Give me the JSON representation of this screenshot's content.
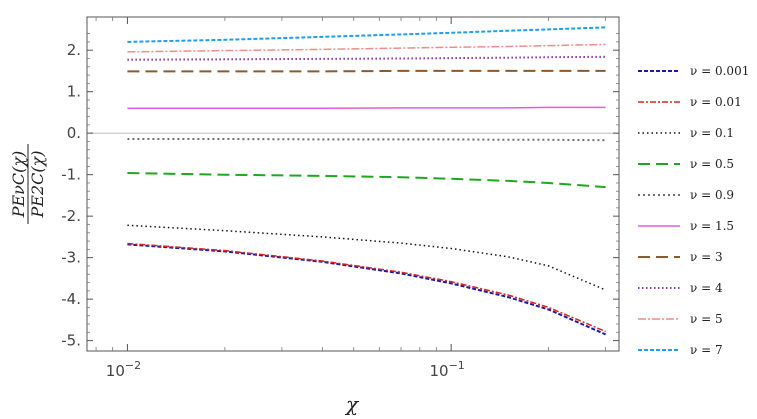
{
  "chart_data": {
    "type": "line",
    "title": "",
    "xlabel": "χ",
    "ylabel_numerator": "PEνC(χ)",
    "ylabel_denominator": "PE2C(χ)",
    "x_scale": "log",
    "xlim": [
      0.0075,
      0.33
    ],
    "ylim": [
      -5.25,
      2.8
    ],
    "x_ticks": [
      {
        "value": 0.01,
        "base": "10",
        "exp": "−2"
      },
      {
        "value": 0.1,
        "base": "10",
        "exp": "−1"
      }
    ],
    "y_ticks": [
      {
        "value": 2,
        "label": "2."
      },
      {
        "value": 1,
        "label": "1."
      },
      {
        "value": 0,
        "label": "0."
      },
      {
        "value": -1,
        "label": "-1."
      },
      {
        "value": -2,
        "label": "-2."
      },
      {
        "value": -3,
        "label": "-3."
      },
      {
        "value": -4,
        "label": "-4."
      },
      {
        "value": -5,
        "label": "-5."
      }
    ],
    "grid": false,
    "zero_line": true,
    "legend_position": "right",
    "x": [
      0.01,
      0.02,
      0.04,
      0.07,
      0.1,
      0.15,
      0.2,
      0.3
    ],
    "series": [
      {
        "name": "ν = 0.001",
        "color": "#1a1aa8",
        "dash": "4,2",
        "width": 2,
        "values": [
          -2.68,
          -2.85,
          -3.1,
          -3.38,
          -3.62,
          -3.95,
          -4.25,
          -4.85
        ]
      },
      {
        "name": "ν = 0.01",
        "color": "#e02020",
        "dash": "6,2,2,2",
        "width": 1.5,
        "values": [
          -2.66,
          -2.83,
          -3.08,
          -3.35,
          -3.58,
          -3.9,
          -4.2,
          -4.78
        ]
      },
      {
        "name": "ν = 0.1",
        "color": "#111111",
        "dash": "1.5,3",
        "width": 1.5,
        "values": [
          -2.22,
          -2.35,
          -2.5,
          -2.65,
          -2.78,
          -2.98,
          -3.2,
          -3.78
        ]
      },
      {
        "name": "ν = 0.5",
        "color": "#1fa81f",
        "dash": "12,6",
        "width": 2,
        "values": [
          -0.96,
          -1.0,
          -1.03,
          -1.06,
          -1.1,
          -1.15,
          -1.2,
          -1.3
        ]
      },
      {
        "name": "ν = 0.9",
        "color": "#707070",
        "dash": "2,3",
        "width": 2,
        "values": [
          -0.14,
          -0.14,
          -0.15,
          -0.15,
          -0.15,
          -0.16,
          -0.16,
          -0.17
        ]
      },
      {
        "name": "ν = 1.5",
        "color": "#e35ce0",
        "dash": "",
        "width": 1.5,
        "values": [
          0.6,
          0.6,
          0.6,
          0.61,
          0.61,
          0.61,
          0.62,
          0.62
        ]
      },
      {
        "name": "ν = 3",
        "color": "#8c5a2b",
        "dash": "12,6",
        "width": 2,
        "values": [
          1.49,
          1.49,
          1.49,
          1.5,
          1.5,
          1.5,
          1.5,
          1.5
        ]
      },
      {
        "name": "ν = 4",
        "color": "#8a2bb5",
        "dash": "1.5,2.5",
        "width": 2,
        "values": [
          1.77,
          1.78,
          1.79,
          1.8,
          1.81,
          1.82,
          1.83,
          1.84
        ]
      },
      {
        "name": "ν = 5",
        "color": "#f08c8c",
        "dash": "8,2,2,2",
        "width": 1.5,
        "values": [
          1.96,
          1.99,
          2.02,
          2.05,
          2.07,
          2.09,
          2.11,
          2.14
        ]
      },
      {
        "name": "ν = 7",
        "color": "#1e9ef0",
        "dash": "4,2",
        "width": 2,
        "values": [
          2.2,
          2.25,
          2.32,
          2.38,
          2.42,
          2.47,
          2.5,
          2.55
        ]
      }
    ]
  }
}
